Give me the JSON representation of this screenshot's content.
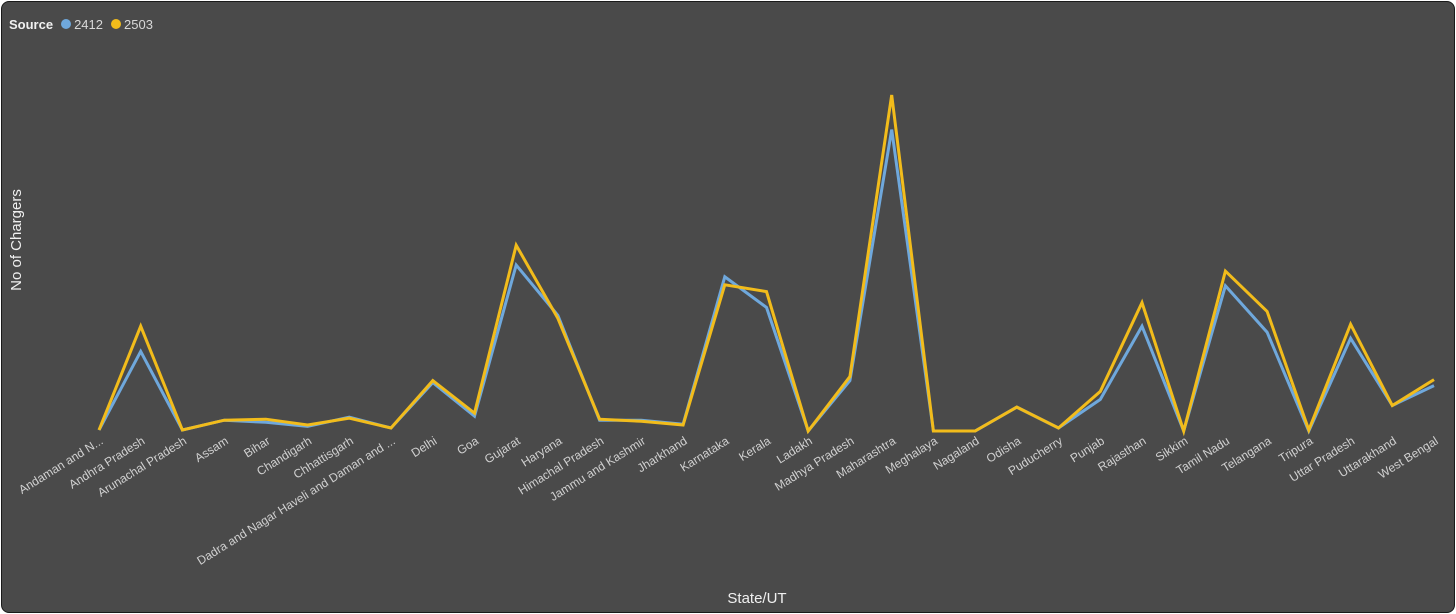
{
  "chart_data": {
    "type": "line",
    "title": "",
    "xlabel": "State/UT",
    "ylabel": "No of Chargers",
    "legend": {
      "title": "Source",
      "placement": "top-left"
    },
    "grid": false,
    "y_axis_labels_shown": false,
    "values_note": "Y axis has no printed ticks; values are in relative chart units (0 = baseline, 100 = tallest peak).",
    "ylim": [
      0,
      100
    ],
    "categories": [
      "Andaman and N...",
      "Andhra Pradesh",
      "Arunachal Pradesh",
      "Assam",
      "Bihar",
      "Chandigarh",
      "Chhattisgarh",
      "Dadra and Nagar Haveli and Daman and ...",
      "Delhi",
      "Goa",
      "Gujarat",
      "Haryana",
      "Himachal Pradesh",
      "Jammu and Kashmir",
      "Jharkhand",
      "Karnataka",
      "Kerala",
      "Ladakh",
      "Madhya Pradesh",
      "Maharashtra",
      "Meghalaya",
      "Nagaland",
      "Odisha",
      "Puducherry",
      "Punjab",
      "Rajasthan",
      "Sikkim",
      "Tamil Nadu",
      "Telangana",
      "Tripura",
      "Uttar Pradesh",
      "Uttarakhand",
      "West Bengal"
    ],
    "series": [
      {
        "name": "2412",
        "color": "#6fa8dc",
        "values": [
          0.3,
          23.7,
          0.3,
          3.2,
          2.6,
          1.4,
          4.1,
          0.9,
          14.4,
          4.4,
          49.4,
          34.4,
          3.2,
          3.2,
          2.0,
          45.9,
          36.8,
          0.0,
          15.0,
          89.7,
          0.0,
          0.0,
          7.1,
          0.9,
          9.4,
          31.2,
          0.0,
          43.2,
          29.4,
          0.0,
          27.6,
          7.6,
          13.5
        ]
      },
      {
        "name": "2503",
        "color": "#f2bc1b",
        "values": [
          0.3,
          31.2,
          0.3,
          3.2,
          3.5,
          1.8,
          3.8,
          0.9,
          15.0,
          5.3,
          55.3,
          33.5,
          3.5,
          2.9,
          1.8,
          43.5,
          41.5,
          0.0,
          16.2,
          100.0,
          0.0,
          0.0,
          7.1,
          0.9,
          11.8,
          38.2,
          0.0,
          47.6,
          35.6,
          0.3,
          31.8,
          7.6,
          15.3
        ]
      }
    ]
  }
}
